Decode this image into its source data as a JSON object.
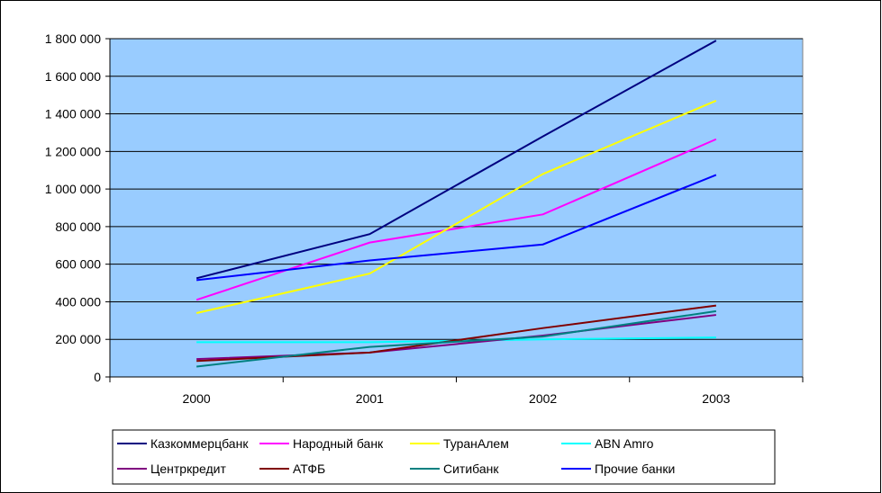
{
  "chart_data": {
    "type": "line",
    "title": "",
    "xlabel": "",
    "ylabel": "",
    "categories": [
      "2000",
      "2001",
      "2002",
      "2003"
    ],
    "ylim": [
      0,
      1800000
    ],
    "yticks": [
      0,
      200000,
      400000,
      600000,
      800000,
      1000000,
      1200000,
      1400000,
      1600000,
      1800000
    ],
    "ytick_labels": [
      "0",
      "200 000",
      "400 000",
      "600 000",
      "800 000",
      "1 000 000",
      "1 200 000",
      "1 400 000",
      "1 600 000",
      "1 800 000"
    ],
    "grid": "horizontal",
    "legend_position": "bottom",
    "plot_background": "#99CCFF",
    "series": [
      {
        "name": "Казкоммерцбанк",
        "color": "#000080",
        "values": [
          525000,
          760000,
          1280000,
          1790000
        ]
      },
      {
        "name": "Народный банк",
        "color": "#FF00FF",
        "values": [
          410000,
          715000,
          865000,
          1265000
        ]
      },
      {
        "name": "ТуранАлем",
        "color": "#FFFF00",
        "values": [
          340000,
          550000,
          1080000,
          1470000
        ]
      },
      {
        "name": "ABN Amro",
        "color": "#00FFFF",
        "values": [
          185000,
          185000,
          200000,
          210000
        ]
      },
      {
        "name": "Центркредит",
        "color": "#800080",
        "values": [
          95000,
          130000,
          220000,
          330000
        ]
      },
      {
        "name": "АТФБ",
        "color": "#800000",
        "values": [
          85000,
          130000,
          260000,
          380000
        ]
      },
      {
        "name": "Ситибанк",
        "color": "#008080",
        "values": [
          55000,
          160000,
          215000,
          350000
        ]
      },
      {
        "name": "Прочие банки",
        "color": "#0000FF",
        "values": [
          515000,
          620000,
          705000,
          1075000
        ]
      }
    ]
  }
}
